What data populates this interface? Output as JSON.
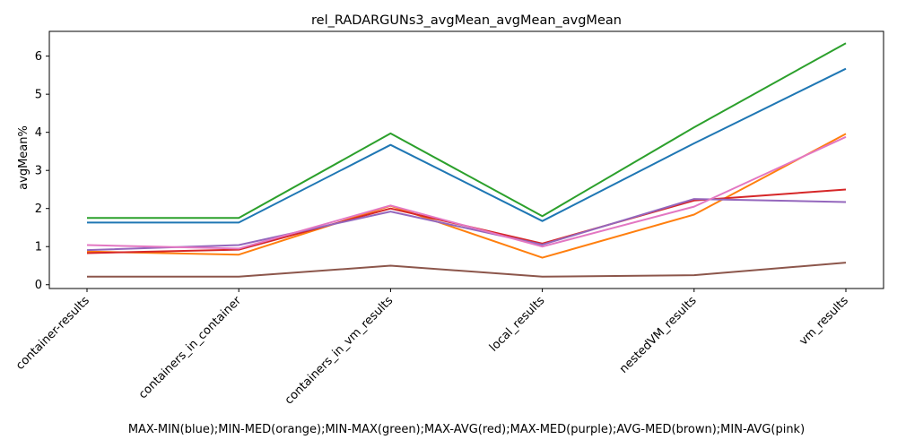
{
  "chart_data": {
    "type": "line",
    "title": "rel_RADARGUNs3_avgMean_avgMean_avgMean",
    "xlabel": "MAX-MIN(blue);MIN-MED(orange);MIN-MAX(green);MAX-AVG(red);MAX-MED(purple);AVG-MED(brown);MIN-AVG(pink)",
    "ylabel": "avgMean%",
    "ylim": [
      -0.1,
      6.65
    ],
    "yticks": [
      "0",
      "1",
      "2",
      "3",
      "4",
      "5",
      "6"
    ],
    "grid": false,
    "categories": [
      "container-results",
      "containers_in_container",
      "containers_in_vm_results",
      "local_results",
      "nestedVM_results",
      "vm_results"
    ],
    "series": [
      {
        "color": "#1f77b4",
        "values": [
          1.63,
          1.63,
          3.67,
          1.67,
          3.71,
          5.67
        ]
      },
      {
        "color": "#ff7f0e",
        "values": [
          0.87,
          0.79,
          2.07,
          0.71,
          1.84,
          3.96
        ]
      },
      {
        "color": "#2ca02c",
        "values": [
          1.75,
          1.75,
          3.97,
          1.8,
          4.13,
          6.34
        ]
      },
      {
        "color": "#d62728",
        "values": [
          0.83,
          0.92,
          2.0,
          1.08,
          2.21,
          2.5
        ]
      },
      {
        "color": "#9467bd",
        "values": [
          0.91,
          1.04,
          1.92,
          1.05,
          2.25,
          2.17
        ]
      },
      {
        "color": "#8c564b",
        "values": [
          0.21,
          0.21,
          0.5,
          0.21,
          0.25,
          0.58
        ]
      },
      {
        "color": "#e377c2",
        "values": [
          1.04,
          0.95,
          2.08,
          1.0,
          2.05,
          3.88
        ]
      }
    ]
  }
}
